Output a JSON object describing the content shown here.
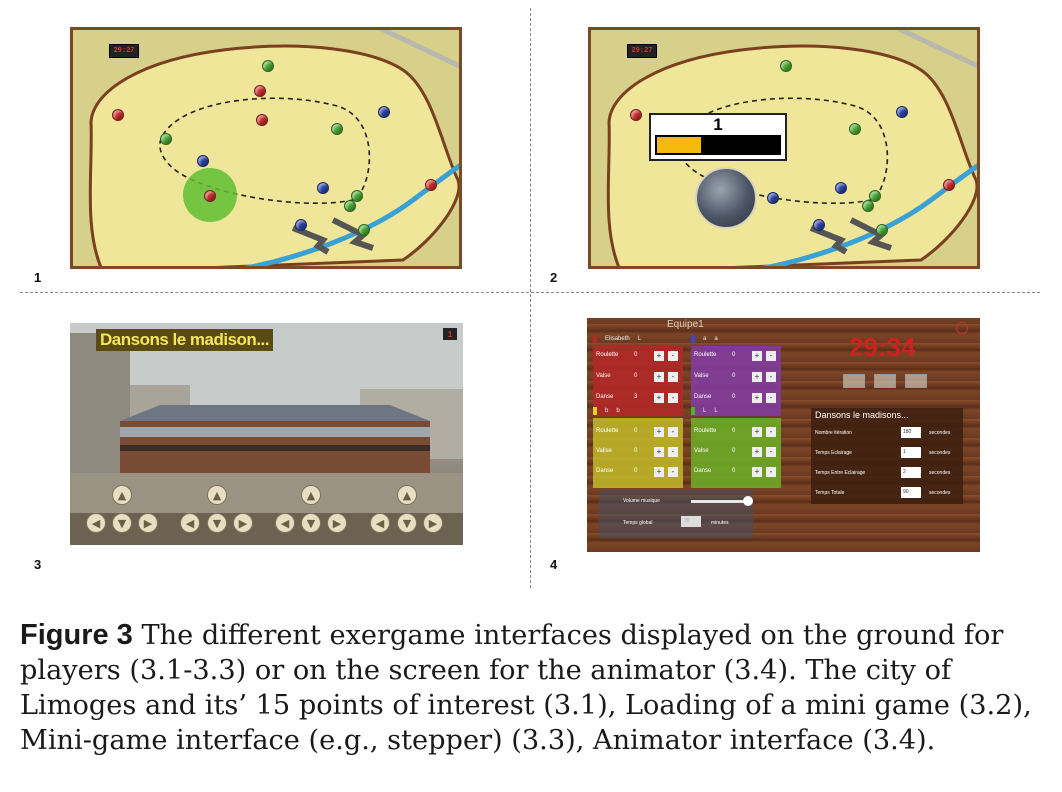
{
  "panels": [
    {
      "number": "1",
      "timer": "29:27"
    },
    {
      "number": "2",
      "timer": "29:27",
      "loading_number": "1",
      "loading_progress": 0.35
    },
    {
      "number": "3",
      "title": "Dansons le madison...",
      "badge": "1"
    },
    {
      "number": "4",
      "team_title": "Equipe1",
      "clock": "29:34",
      "teams": [
        {
          "name": "Elisabeth",
          "member": "L",
          "color": "#b52828",
          "rows": [
            {
              "label": "Roulette",
              "value": "0"
            },
            {
              "label": "Valse",
              "value": "0"
            },
            {
              "label": "Danse",
              "value": "3"
            }
          ]
        },
        {
          "name": "a",
          "member": "a",
          "color": "#3b49c9",
          "rows": [
            {
              "label": "Roulette",
              "value": "0"
            },
            {
              "label": "Valse",
              "value": "0"
            },
            {
              "label": "Danse",
              "value": "0"
            }
          ]
        },
        {
          "name": "b",
          "member": "b",
          "color": "#e6d21f",
          "rows": [
            {
              "label": "Roulette",
              "value": "0"
            },
            {
              "label": "Valise",
              "value": "0"
            },
            {
              "label": "Danse",
              "value": "0"
            }
          ]
        },
        {
          "name": "L",
          "member": "L",
          "color": "#49b62a",
          "rows": [
            {
              "label": "Roulette",
              "value": "0"
            },
            {
              "label": "Valse",
              "value": "0"
            },
            {
              "label": "Danse",
              "value": "0"
            }
          ]
        }
      ],
      "settings": {
        "title": "Dansons le madisons...",
        "rows": [
          {
            "label": "Nombre itération",
            "value": "180",
            "unit": "secondes"
          },
          {
            "label": "Temps Eclairage",
            "value": "1",
            "unit": "secondes"
          },
          {
            "label": "Temps Entre Eclairage",
            "value": "2",
            "unit": "secondes"
          },
          {
            "label": "Temps Totale",
            "value": "90",
            "unit": "secondes"
          }
        ]
      },
      "music_label": "Volume musique",
      "global_label": "Temps global",
      "global_value": "30",
      "global_unit": "minutes"
    }
  ],
  "caption": {
    "label": "Figure 3",
    "text": " The different exergame interfaces displayed on the ground for players (3.1-3.3) or on the screen for the animator (3.4). The city of Limoges and its’ 15 points of interest (3.1), Loading of a mini game (3.2), Mini-game interface (e.g., stepper) (3.3), Animator interface (3.4)."
  }
}
